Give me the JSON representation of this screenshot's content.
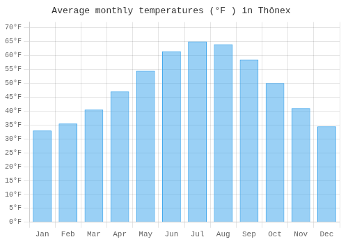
{
  "chart_data": {
    "type": "bar",
    "title": "Average monthly temperatures (°F ) in Thônex",
    "categories": [
      "Jan",
      "Feb",
      "Mar",
      "Apr",
      "May",
      "Jun",
      "Jul",
      "Aug",
      "Sep",
      "Oct",
      "Nov",
      "Dec"
    ],
    "values": [
      33,
      35.5,
      40.5,
      47,
      54.5,
      61.5,
      65,
      64,
      58.5,
      50,
      41,
      34.5
    ],
    "ylim": [
      0,
      72
    ],
    "yticks": [
      {
        "value": 0,
        "label": "0°F"
      },
      {
        "value": 5,
        "label": "5°F"
      },
      {
        "value": 10,
        "label": "10°F"
      },
      {
        "value": 15,
        "label": "15°F"
      },
      {
        "value": 20,
        "label": "20°F"
      },
      {
        "value": 25,
        "label": "25°F"
      },
      {
        "value": 30,
        "label": "30°F"
      },
      {
        "value": 35,
        "label": "35°F"
      },
      {
        "value": 40,
        "label": "40°F"
      },
      {
        "value": 45,
        "label": "45°F"
      },
      {
        "value": 50,
        "label": "50°F"
      },
      {
        "value": 55,
        "label": "55°F"
      },
      {
        "value": 60,
        "label": "60°F"
      },
      {
        "value": 65,
        "label": "65°F"
      },
      {
        "value": 70,
        "label": "70°F"
      }
    ],
    "grid": true
  }
}
